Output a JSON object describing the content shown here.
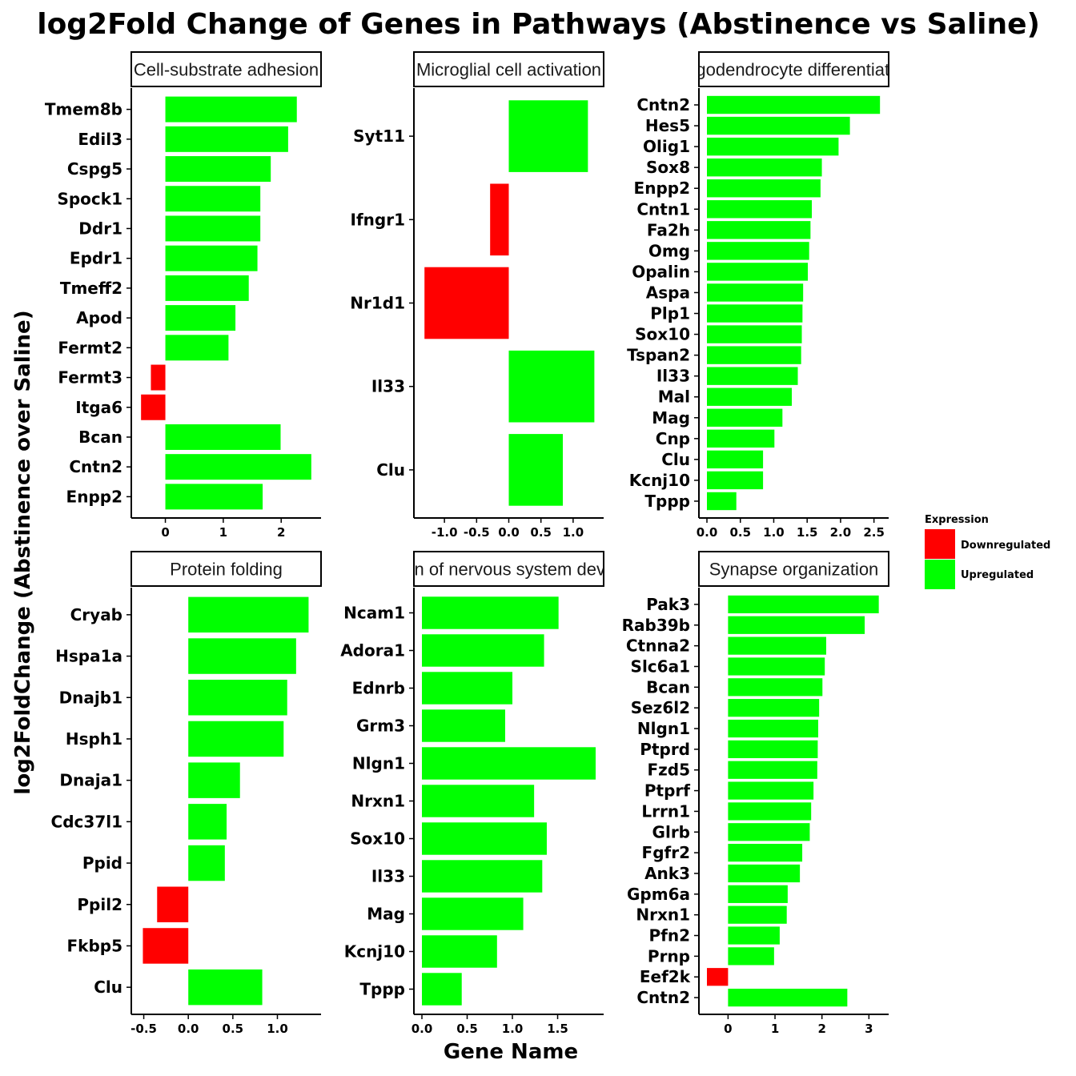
{
  "chart_data": {
    "type": "bar",
    "orientation": "horizontal",
    "title": "log2Fold Change of Genes in Pathways  (Abstinence vs Saline)",
    "xlabel": "Gene Name",
    "ylabel": "log2FoldChange (Abstinence over Saline)",
    "legend": {
      "title": "Expression",
      "placement": "right",
      "entries": [
        {
          "label": "Downregulated",
          "color": "#ff0000"
        },
        {
          "label": "Upregulated",
          "color": "#00ff00"
        }
      ]
    },
    "colors": {
      "up": "#00ff00",
      "down": "#ff0000"
    },
    "panels": [
      {
        "strip": "Cell-substrate adhesion",
        "xlim": [
          -0.45,
          2.55
        ],
        "ticks": [
          {
            "v": 0,
            "label": "0"
          },
          {
            "v": 1,
            "label": "1"
          },
          {
            "v": 2,
            "label": "2"
          }
        ],
        "categories": [
          "Tmem8b",
          "Edil3",
          "Cspg5",
          "Spock1",
          "Ddr1",
          "Epdr1",
          "Tmeff2",
          "Apod",
          "Fermt2",
          "Fermt3",
          "Itga6",
          "Bcan",
          "Cntn2",
          "Enpp2"
        ],
        "values": [
          2.27,
          2.12,
          1.82,
          1.64,
          1.64,
          1.59,
          1.44,
          1.21,
          1.09,
          -0.25,
          -0.42,
          1.99,
          2.52,
          1.68
        ]
      },
      {
        "strip": "Microglial cell activation",
        "xlim": [
          -1.35,
          1.35
        ],
        "ticks": [
          {
            "v": -1.0,
            "label": "-1.0"
          },
          {
            "v": -0.5,
            "label": "-0.5"
          },
          {
            "v": 0,
            "label": "0.0"
          },
          {
            "v": 0.5,
            "label": "0.5"
          },
          {
            "v": 1.0,
            "label": "1.0"
          }
        ],
        "categories": [
          "Syt11",
          "Ifngr1",
          "Nr1d1",
          "Il33",
          "Clu"
        ],
        "values": [
          1.23,
          -0.29,
          -1.31,
          1.33,
          0.84
        ]
      },
      {
        "strip": "Oligodendrocyte differentiation",
        "xlim": [
          0,
          2.6
        ],
        "ticks": [
          {
            "v": 0,
            "label": "0.0"
          },
          {
            "v": 0.5,
            "label": "0.5"
          },
          {
            "v": 1.0,
            "label": "1.0"
          },
          {
            "v": 1.5,
            "label": "1.5"
          },
          {
            "v": 2.0,
            "label": "2.0"
          },
          {
            "v": 2.5,
            "label": "2.5"
          }
        ],
        "categories": [
          "Cntn2",
          "Hes5",
          "Olig1",
          "Sox8",
          "Enpp2",
          "Cntn1",
          "Fa2h",
          "Omg",
          "Opalin",
          "Aspa",
          "Plp1",
          "Sox10",
          "Tspan2",
          "Il33",
          "Mal",
          "Mag",
          "Cnp",
          "Clu",
          "Kcnj10",
          "Tppp"
        ],
        "values": [
          2.59,
          2.14,
          1.97,
          1.72,
          1.7,
          1.57,
          1.55,
          1.53,
          1.51,
          1.44,
          1.43,
          1.42,
          1.41,
          1.36,
          1.27,
          1.13,
          1.01,
          0.84,
          0.84,
          0.44
        ]
      },
      {
        "strip": "Protein folding",
        "xlim": [
          -0.55,
          1.4
        ],
        "ticks": [
          {
            "v": -0.5,
            "label": "-0.5"
          },
          {
            "v": 0,
            "label": "0.0"
          },
          {
            "v": 0.5,
            "label": "0.5"
          },
          {
            "v": 1.0,
            "label": "1.0"
          }
        ],
        "categories": [
          "Cryab",
          "Hspa1a",
          "Dnajb1",
          "Hsph1",
          "Dnaja1",
          "Cdc37l1",
          "Ppid",
          "Ppil2",
          "Fkbp5",
          "Clu"
        ],
        "values": [
          1.35,
          1.21,
          1.11,
          1.07,
          0.58,
          0.43,
          0.41,
          -0.35,
          -0.51,
          0.83
        ]
      },
      {
        "strip": "Regulation of nervous system development",
        "xlim": [
          0,
          1.92
        ],
        "ticks": [
          {
            "v": 0,
            "label": "0.0"
          },
          {
            "v": 0.5,
            "label": "0.5"
          },
          {
            "v": 1.0,
            "label": "1.0"
          },
          {
            "v": 1.5,
            "label": "1.5"
          }
        ],
        "categories": [
          "Ncam1",
          "Adora1",
          "Ednrb",
          "Grm3",
          "Nlgn1",
          "Nrxn1",
          "Sox10",
          "Il33",
          "Mag",
          "Kcnj10",
          "Tppp"
        ],
        "values": [
          1.51,
          1.35,
          1.0,
          0.92,
          1.92,
          1.24,
          1.38,
          1.33,
          1.12,
          0.83,
          0.44
        ]
      },
      {
        "strip": "Synapse organization",
        "xlim": [
          -0.45,
          3.25
        ],
        "ticks": [
          {
            "v": 0,
            "label": "0"
          },
          {
            "v": 1,
            "label": "1"
          },
          {
            "v": 2,
            "label": "2"
          },
          {
            "v": 3,
            "label": "3"
          }
        ],
        "categories": [
          "Pak3",
          "Rab39b",
          "Ctnna2",
          "Slc6a1",
          "Bcan",
          "Sez6l2",
          "Nlgn1",
          "Ptprd",
          "Fzd5",
          "Ptprf",
          "Lrrn1",
          "Glrb",
          "Fgfr2",
          "Ank3",
          "Gpm6a",
          "Nrxn1",
          "Pfn2",
          "Prnp",
          "Eef2k",
          "Cntn2"
        ],
        "values": [
          3.21,
          2.91,
          2.09,
          2.06,
          2.01,
          1.94,
          1.92,
          1.91,
          1.9,
          1.82,
          1.77,
          1.74,
          1.58,
          1.53,
          1.27,
          1.25,
          1.1,
          0.98,
          -0.45,
          2.54
        ]
      }
    ]
  }
}
